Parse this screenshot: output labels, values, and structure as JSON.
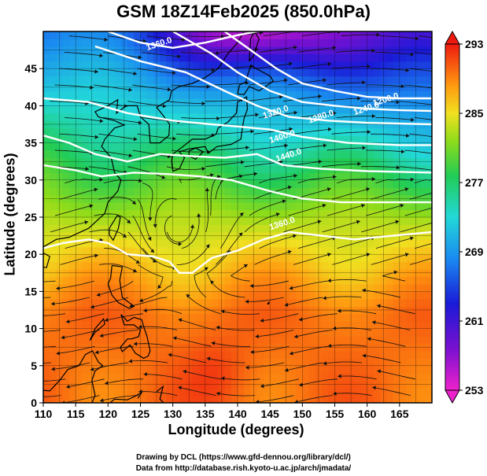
{
  "title": "GSM 18Z14Feb2025 (850.0hPa)",
  "xlabel": "Longitude (degrees)",
  "ylabel": "Latitude  (degrees)",
  "credit_line1": "Drawing by DCL (https://www.gfd-dennou.org/library/dcl/)",
  "credit_line2": "Data from http://database.rish.kyoto-u.ac.jp/arch/jmadata/",
  "chart_data": {
    "type": "heatmap",
    "variable": "temperature with streamlines and geopotential height contours",
    "xlim": [
      110,
      170
    ],
    "ylim": [
      0,
      50
    ],
    "x_ticks": [
      110,
      115,
      120,
      125,
      130,
      135,
      140,
      145,
      150,
      155,
      160,
      165
    ],
    "y_ticks": [
      0,
      5,
      10,
      15,
      20,
      25,
      30,
      35,
      40,
      45
    ],
    "grid": true,
    "colorbar": {
      "placement": "right",
      "min": 253,
      "max": 293,
      "tick_labels": [
        "293",
        "285",
        "277",
        "269",
        "261",
        "253"
      ],
      "tick_values": [
        293,
        285,
        277,
        269,
        261,
        253
      ]
    },
    "contour_labels": [
      {
        "text": "1360.0",
        "lon": 128,
        "lat": 48
      },
      {
        "text": "1200.0",
        "lon": 163,
        "lat": 40.5
      },
      {
        "text": "1240.0",
        "lon": 160,
        "lat": 39.3
      },
      {
        "text": "1280.0",
        "lon": 153,
        "lat": 38.2
      },
      {
        "text": "1320.0",
        "lon": 146,
        "lat": 38.8
      },
      {
        "text": "1400.0",
        "lon": 147,
        "lat": 35.5
      },
      {
        "text": "1440.0",
        "lon": 148,
        "lat": 33
      },
      {
        "text": "1360.0",
        "lon": 147,
        "lat": 23.8
      }
    ]
  },
  "colors": {
    "frame": "#000000",
    "contour": "#ffffff",
    "streamline": "#111111"
  }
}
